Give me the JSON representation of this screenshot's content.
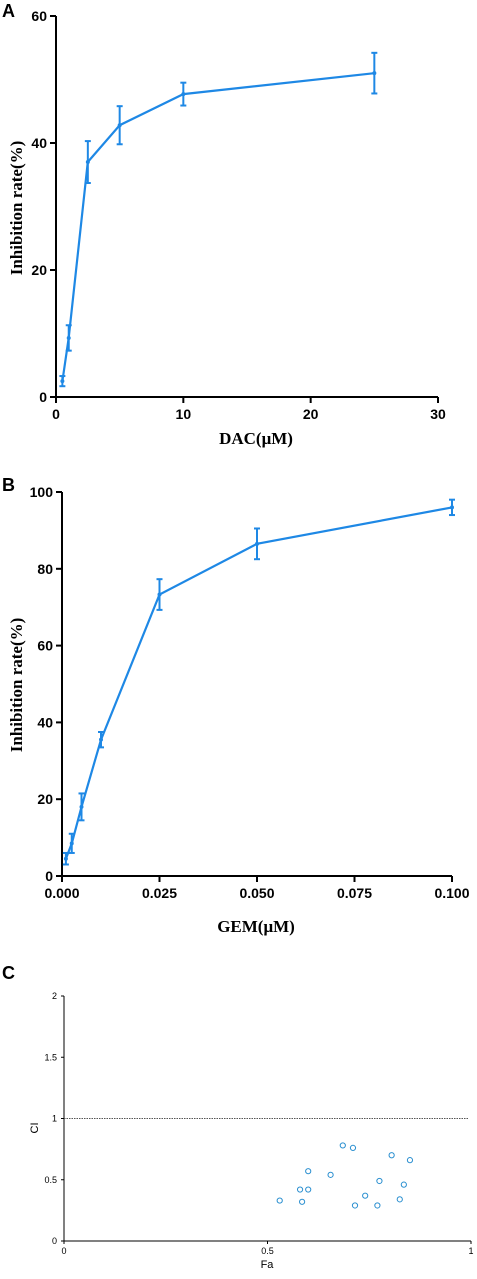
{
  "chart_data": [
    {
      "panel": "A",
      "type": "line",
      "xlabel": "DAC(μM)",
      "ylabel": "Inhibition rate(%)",
      "xlim": [
        0,
        30
      ],
      "ylim": [
        0,
        60
      ],
      "xticks": [
        "0",
        "10",
        "20",
        "30"
      ],
      "yticks": [
        "0",
        "20",
        "40",
        "60"
      ],
      "color": "#1e88e5",
      "series": [
        {
          "x": [
            0.5,
            1,
            2.5,
            5,
            10,
            25
          ],
          "y": [
            2.5,
            9.3,
            37.0,
            42.8,
            47.7,
            51.0
          ],
          "err": [
            0.8,
            2.0,
            3.3,
            3.0,
            1.8,
            3.2
          ]
        }
      ]
    },
    {
      "panel": "B",
      "type": "line",
      "xlabel": "GEM(μM)",
      "ylabel": "Inhibition rate(%)",
      "xlim": [
        0,
        0.1
      ],
      "ylim": [
        0,
        100
      ],
      "xticks": [
        "0.000",
        "0.025",
        "0.050",
        "0.075",
        "0.100"
      ],
      "yticks": [
        "0",
        "20",
        "40",
        "60",
        "80",
        "100"
      ],
      "color": "#1e88e5",
      "series": [
        {
          "x": [
            0.001,
            0.0025,
            0.005,
            0.01,
            0.025,
            0.05,
            0.1
          ],
          "y": [
            4.5,
            8.5,
            18.0,
            35.5,
            73.3,
            86.5,
            96.0
          ],
          "err": [
            1.5,
            2.5,
            3.5,
            2.0,
            4.0,
            4.0,
            2.0
          ]
        }
      ]
    },
    {
      "panel": "C",
      "type": "scatter",
      "xlabel": "Fa",
      "ylabel": "CI",
      "xlim": [
        0,
        1
      ],
      "ylim": [
        0,
        2
      ],
      "xticks": [
        "0",
        "0.5",
        "1"
      ],
      "yticks": [
        "0",
        "0.5",
        "1",
        "1.5",
        "2"
      ],
      "reference_line": 1.0,
      "color": "#2a8fd0",
      "points": {
        "x": [
          0.53,
          0.58,
          0.585,
          0.6,
          0.6,
          0.655,
          0.685,
          0.71,
          0.715,
          0.74,
          0.77,
          0.775,
          0.805,
          0.825,
          0.835,
          0.85
        ],
        "y": [
          0.33,
          0.42,
          0.32,
          0.42,
          0.57,
          0.54,
          0.78,
          0.76,
          0.29,
          0.37,
          0.29,
          0.49,
          0.7,
          0.34,
          0.46,
          0.66
        ]
      }
    }
  ]
}
